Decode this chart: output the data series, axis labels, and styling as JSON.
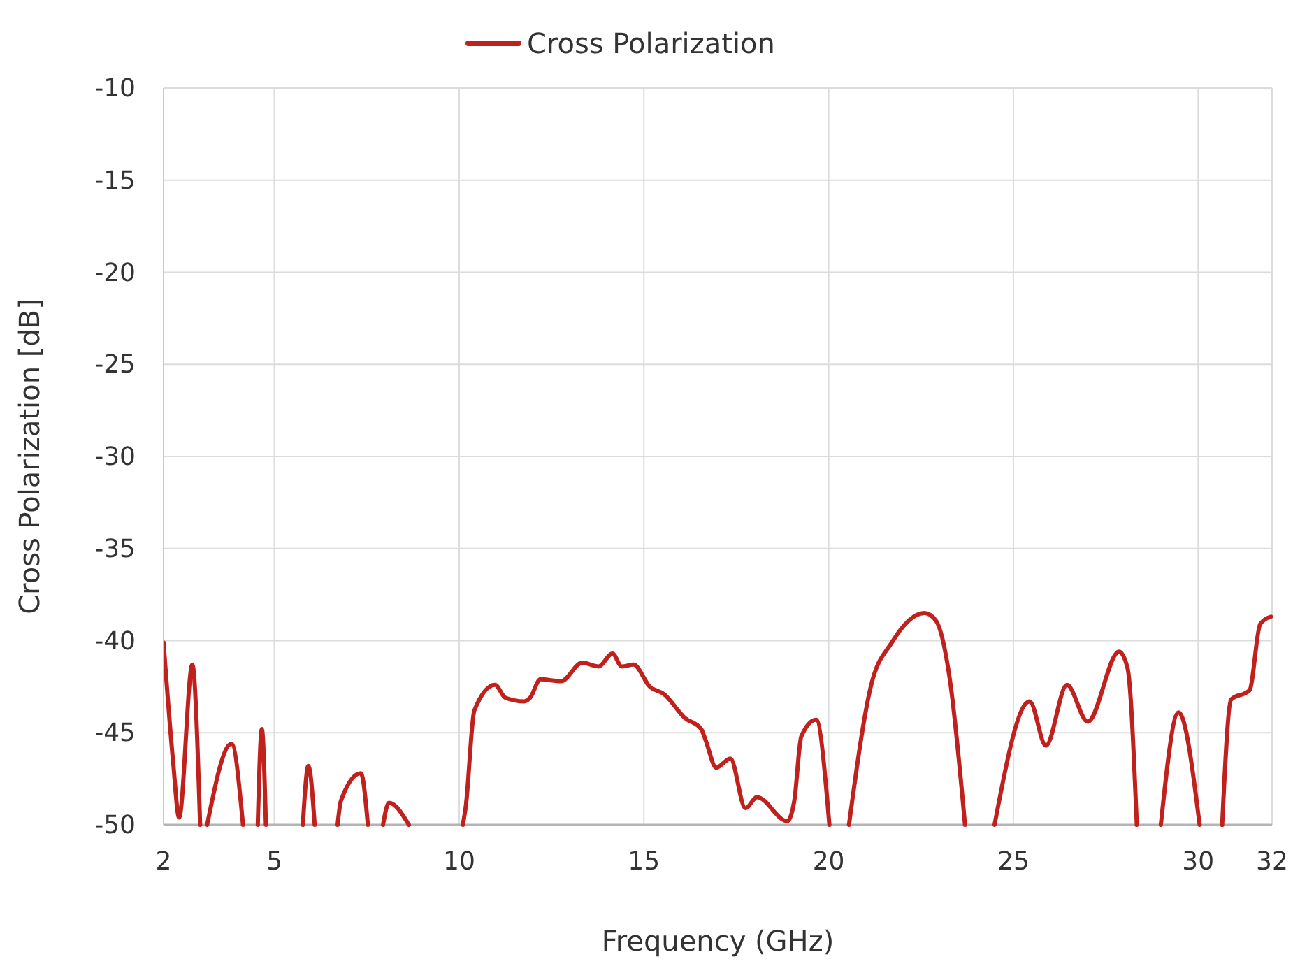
{
  "chart_data": {
    "type": "line",
    "xlabel": "Frequency (GHz)",
    "ylabel": "Cross Polarization [dB]",
    "x": [
      2,
      2.26,
      2.42,
      2.78,
      2.99,
      null,
      3.18,
      3.84,
      4.15,
      null,
      4.55,
      4.66,
      4.77,
      null,
      5.77,
      5.92,
      6.09,
      null,
      6.71,
      6.8,
      7.34,
      7.53,
      null,
      7.94,
      8.1,
      8.64,
      null,
      10.1,
      10.18,
      10.41,
      10.97,
      11.25,
      11.76,
      11.92,
      12.2,
      12.76,
      13.33,
      13.77,
      14.15,
      14.4,
      14.72,
      15.16,
      15.54,
      16.11,
      16.55,
      16.67,
      16.96,
      17.34,
      17.75,
      18.06,
      18.88,
      19.07,
      19.26,
      19.66,
      20.02,
      null,
      20.55,
      21.14,
      21.71,
      22.59,
      22.9,
      23.28,
      23.69,
      null,
      24.49,
      25.44,
      25.88,
      26.45,
      27.01,
      27.86,
      28.09,
      28.34,
      null,
      28.99,
      29.47,
      30.04,
      null,
      30.65,
      30.89,
      31.39,
      31.68,
      31.97
    ],
    "series": [
      {
        "name": "Cross Polarization",
        "color": "#c0211d",
        "values": [
          -40.1,
          -46.6,
          -49.6,
          -41.3,
          -50,
          null,
          -50,
          -45.6,
          -50,
          null,
          -50,
          -44.8,
          -50,
          null,
          -50,
          -46.8,
          -50,
          null,
          -50,
          -48.7,
          -47.2,
          -50,
          null,
          -50,
          -48.8,
          -50,
          null,
          -50,
          -49,
          -43.8,
          -42.4,
          -43.1,
          -43.3,
          -43.1,
          -42.1,
          -42.2,
          -41.2,
          -41.4,
          -40.7,
          -41.4,
          -41.3,
          -42.5,
          -42.9,
          -44.2,
          -44.8,
          -45.4,
          -46.9,
          -46.4,
          -49.1,
          -48.5,
          -49.8,
          -48.7,
          -45.2,
          -44.3,
          -50,
          null,
          -50,
          -42.5,
          -40.1,
          -38.5,
          -38.9,
          -42.1,
          -50,
          null,
          -50,
          -43.3,
          -45.7,
          -42.4,
          -44.4,
          -40.6,
          -41.5,
          -50,
          null,
          -50,
          -43.9,
          -50,
          null,
          -50,
          -43.2,
          -42.7,
          -39.1,
          -38.7
        ]
      }
    ],
    "xlim": [
      2,
      32
    ],
    "xticks": [
      2,
      5,
      10,
      15,
      20,
      25,
      30,
      32
    ],
    "ylim": [
      -50,
      -10
    ],
    "yticks": [
      -50,
      -45,
      -40,
      -35,
      -30,
      -25,
      -20,
      -15,
      -10
    ],
    "grid": true,
    "legend": "top"
  }
}
